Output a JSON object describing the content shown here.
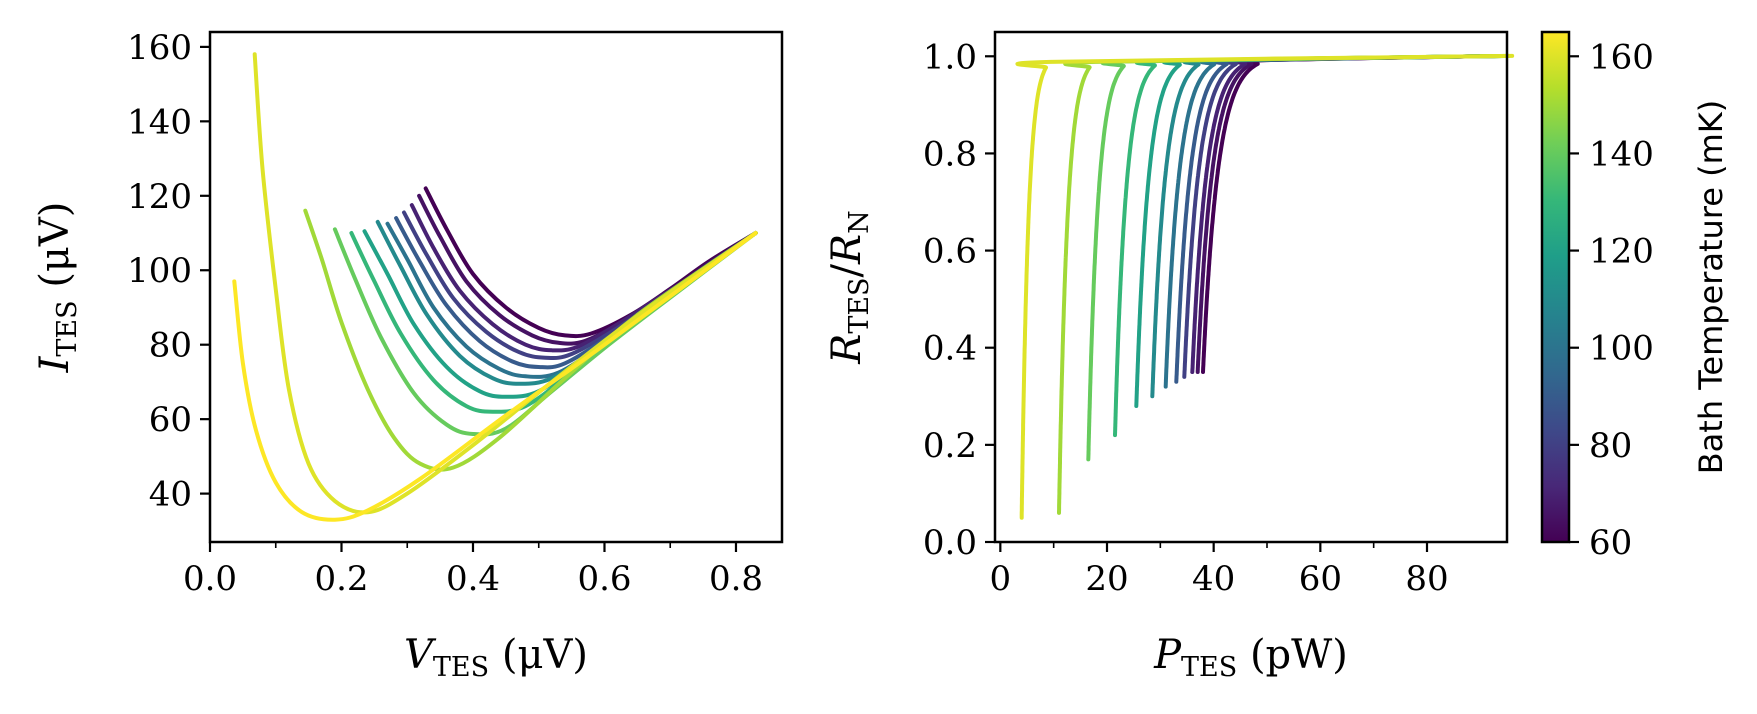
{
  "chart_data": [
    {
      "type": "line",
      "panel": "left",
      "xlabel": {
        "main": "V",
        "sub": "TES",
        "unit": " (μV)"
      },
      "ylabel": {
        "main": "I",
        "sub": "TES",
        "unit": " (μV)"
      },
      "xlim": [
        0.0,
        0.87
      ],
      "ylim": [
        27,
        164
      ],
      "xticks": [
        0.0,
        0.2,
        0.4,
        0.6,
        0.8
      ],
      "xtick_labels": [
        "0.0",
        "0.2",
        "0.4",
        "0.6",
        "0.8"
      ],
      "yticks": [
        40,
        60,
        80,
        100,
        120,
        140,
        160
      ],
      "ytick_labels": [
        "40",
        "60",
        "80",
        "100",
        "120",
        "140",
        "160"
      ],
      "grid": false,
      "series": [
        {
          "temp_mK": 60,
          "x": [
            0.328,
            0.36,
            0.4,
            0.45,
            0.5,
            0.54,
            0.58,
            0.64,
            0.7,
            0.76,
            0.83
          ],
          "y": [
            122,
            111,
            99,
            90,
            84.5,
            82.5,
            83,
            88,
            95,
            102.5,
            110
          ]
        },
        {
          "temp_mK": 65,
          "x": [
            0.318,
            0.35,
            0.39,
            0.44,
            0.49,
            0.53,
            0.57,
            0.63,
            0.7,
            0.76,
            0.83
          ],
          "y": [
            120,
            109,
            97,
            88,
            82.5,
            80.5,
            81,
            86.5,
            94.5,
            102,
            110
          ]
        },
        {
          "temp_mK": 70,
          "x": [
            0.307,
            0.34,
            0.38,
            0.43,
            0.48,
            0.52,
            0.56,
            0.62,
            0.69,
            0.76,
            0.83
          ],
          "y": [
            117.5,
            106,
            94.5,
            85.5,
            80,
            78.5,
            79.5,
            85.5,
            93.5,
            101.5,
            110
          ]
        },
        {
          "temp_mK": 80,
          "x": [
            0.295,
            0.33,
            0.37,
            0.42,
            0.47,
            0.51,
            0.55,
            0.62,
            0.69,
            0.76,
            0.83
          ],
          "y": [
            115.5,
            104,
            92.5,
            83.5,
            78,
            76.5,
            77.5,
            84.5,
            93,
            101.5,
            110
          ]
        },
        {
          "temp_mK": 90,
          "x": [
            0.283,
            0.32,
            0.36,
            0.41,
            0.46,
            0.5,
            0.54,
            0.61,
            0.68,
            0.75,
            0.83
          ],
          "y": [
            114,
            102,
            90.5,
            81,
            75.5,
            74,
            75,
            82.5,
            91.5,
            100.5,
            110
          ]
        },
        {
          "temp_mK": 100,
          "x": [
            0.27,
            0.3,
            0.34,
            0.39,
            0.44,
            0.48,
            0.53,
            0.6,
            0.67,
            0.75,
            0.83
          ],
          "y": [
            112.5,
            103,
            90,
            79.5,
            73.5,
            71.5,
            72.5,
            80.5,
            90,
            100,
            110
          ]
        },
        {
          "temp_mK": 110,
          "x": [
            0.255,
            0.29,
            0.33,
            0.38,
            0.43,
            0.47,
            0.52,
            0.59,
            0.66,
            0.74,
            0.83
          ],
          "y": [
            113,
            101,
            88,
            77,
            71,
            69.5,
            71,
            79,
            88.5,
            99,
            110
          ]
        },
        {
          "temp_mK": 120,
          "x": [
            0.235,
            0.27,
            0.31,
            0.36,
            0.41,
            0.45,
            0.5,
            0.57,
            0.65,
            0.73,
            0.83
          ],
          "y": [
            110.5,
            99,
            85.5,
            74,
            67.5,
            66,
            67.5,
            76,
            86.5,
            97.5,
            110
          ]
        },
        {
          "temp_mK": 130,
          "x": [
            0.215,
            0.25,
            0.29,
            0.34,
            0.39,
            0.43,
            0.48,
            0.55,
            0.63,
            0.72,
            0.83
          ],
          "y": [
            110,
            97,
            83,
            70.5,
            63.5,
            62,
            63.5,
            72.5,
            84,
            96,
            110
          ]
        },
        {
          "temp_mK": 140,
          "x": [
            0.19,
            0.22,
            0.26,
            0.31,
            0.36,
            0.4,
            0.45,
            0.52,
            0.61,
            0.71,
            0.83
          ],
          "y": [
            111,
            98,
            82,
            67,
            58.5,
            56,
            57.5,
            67.5,
            80.5,
            94,
            110
          ]
        },
        {
          "temp_mK": 150,
          "x": [
            0.145,
            0.17,
            0.2,
            0.24,
            0.28,
            0.32,
            0.37,
            0.44,
            0.54,
            0.65,
            0.83
          ],
          "y": [
            116,
            103,
            86,
            68,
            55,
            48,
            47,
            55,
            71,
            88,
            110
          ]
        },
        {
          "temp_mK": 160,
          "x": [
            0.068,
            0.08,
            0.1,
            0.12,
            0.15,
            0.19,
            0.24,
            0.3,
            0.4,
            0.52,
            0.66,
            0.83
          ],
          "y": [
            158,
            127,
            95,
            68,
            48,
            38,
            35,
            40,
            53,
            70,
            89,
            110
          ]
        },
        {
          "temp_mK": 165,
          "x": [
            0.037,
            0.05,
            0.07,
            0.1,
            0.14,
            0.19,
            0.24,
            0.32,
            0.45,
            0.6,
            0.83
          ],
          "y": [
            97,
            75,
            57,
            43,
            35,
            33,
            35.5,
            44,
            61,
            80,
            110
          ]
        }
      ]
    },
    {
      "type": "line",
      "panel": "right",
      "xlabel": {
        "main": "P",
        "sub": "TES",
        "unit": " (pW)"
      },
      "ylabel": {
        "main1": "R",
        "sub1": "TES",
        "slash": "/",
        "main2": "R",
        "sub2": "N"
      },
      "xlim": [
        -1,
        95
      ],
      "ylim": [
        0.0,
        1.05
      ],
      "xticks": [
        0,
        20,
        40,
        60,
        80
      ],
      "xtick_labels": [
        "0",
        "20",
        "40",
        "60",
        "80"
      ],
      "yticks": [
        0.0,
        0.2,
        0.4,
        0.6,
        0.8,
        1.0
      ],
      "ytick_labels": [
        "0.0",
        "0.2",
        "0.4",
        "0.6",
        "0.8",
        "1.0"
      ],
      "grid": false,
      "colorbar": {
        "label": "Bath Temperature (mK)",
        "range": [
          60,
          165
        ],
        "ticks": [
          60,
          80,
          100,
          120,
          140,
          160
        ],
        "tick_labels": [
          "60",
          "80",
          "100",
          "120",
          "140",
          "160"
        ],
        "colormap": "viridis"
      },
      "series": [
        {
          "temp_mK": 60,
          "P0": 38.0,
          "Rmin": 0.35
        },
        {
          "temp_mK": 65,
          "P0": 37.0,
          "Rmin": 0.35
        },
        {
          "temp_mK": 70,
          "P0": 36.0,
          "Rmin": 0.35
        },
        {
          "temp_mK": 80,
          "P0": 34.5,
          "Rmin": 0.34
        },
        {
          "temp_mK": 90,
          "P0": 33.0,
          "Rmin": 0.33
        },
        {
          "temp_mK": 100,
          "P0": 31.0,
          "Rmin": 0.32
        },
        {
          "temp_mK": 110,
          "P0": 28.5,
          "Rmin": 0.3
        },
        {
          "temp_mK": 120,
          "P0": 25.5,
          "Rmin": 0.28
        },
        {
          "temp_mK": 130,
          "P0": 21.5,
          "Rmin": 0.22
        },
        {
          "temp_mK": 140,
          "P0": 16.5,
          "Rmin": 0.17
        },
        {
          "temp_mK": 150,
          "P0": 11.0,
          "Rmin": 0.06
        },
        {
          "temp_mK": 160,
          "P0": 4.0,
          "Rmin": 0.05
        }
      ]
    }
  ],
  "colors": {
    "viridis_stops": [
      "#440154",
      "#482878",
      "#3e4989",
      "#31688e",
      "#26828e",
      "#1f9e89",
      "#35b779",
      "#6ece58",
      "#b5de2b",
      "#fde725"
    ]
  }
}
